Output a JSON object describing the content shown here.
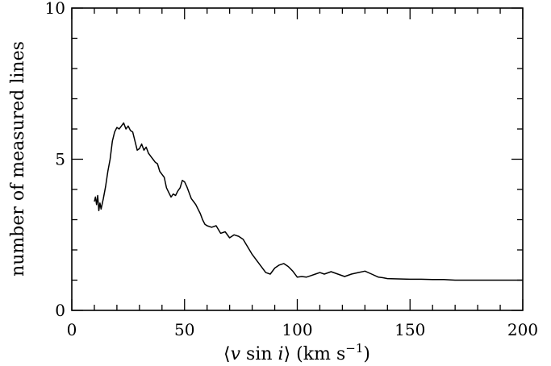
{
  "chart_data": {
    "type": "line",
    "title": "",
    "xlabel_parts": {
      "open": "⟨",
      "v": "v",
      "sin": " sin ",
      "i": "i",
      "close": "⟩",
      "units": " (km s",
      "exp": "−1",
      "end": ")"
    },
    "ylabel": "number of measured lines",
    "xlim": [
      0,
      200
    ],
    "ylim": [
      0,
      10
    ],
    "x_ticks": [
      0,
      50,
      100,
      150,
      200
    ],
    "y_ticks": [
      0,
      5,
      10
    ],
    "x_tick_labels": [
      "0",
      "50",
      "100",
      "150",
      "200"
    ],
    "y_tick_labels": [
      "0",
      "5",
      "10"
    ],
    "x_minor_step": 10,
    "y_minor_step": 1,
    "grid": false,
    "color": "#000000",
    "series": [
      {
        "x": [
          10,
          10.5,
          11,
          11.5,
          12,
          12.5,
          13,
          14,
          15,
          16,
          17,
          18,
          19,
          20,
          21,
          22,
          23,
          24,
          25,
          26,
          27,
          28,
          29,
          30,
          31,
          32,
          33,
          34,
          35,
          36,
          37,
          38,
          39,
          40,
          41,
          42,
          43,
          44,
          45,
          46,
          47,
          48,
          49,
          50,
          51,
          52,
          53,
          54,
          55,
          56,
          57,
          58,
          59,
          60,
          62,
          64,
          66,
          68,
          70,
          72,
          74,
          76,
          78,
          80,
          82,
          84,
          86,
          88,
          90,
          92,
          94,
          96,
          98,
          100,
          102,
          104,
          106,
          108,
          110,
          112,
          115,
          118,
          121,
          124,
          127,
          130,
          133,
          136,
          138,
          140,
          145,
          150,
          155,
          160,
          165,
          170,
          175,
          180,
          185,
          190,
          195,
          200
        ],
        "y": [
          3.6,
          3.75,
          3.5,
          3.8,
          3.3,
          3.55,
          3.35,
          3.7,
          4.1,
          4.6,
          5.0,
          5.6,
          5.9,
          6.05,
          6.0,
          6.1,
          6.2,
          6.0,
          6.1,
          5.95,
          5.9,
          5.6,
          5.3,
          5.35,
          5.5,
          5.3,
          5.4,
          5.2,
          5.1,
          5.0,
          4.9,
          4.85,
          4.6,
          4.5,
          4.4,
          4.05,
          3.9,
          3.75,
          3.85,
          3.8,
          3.95,
          4.05,
          4.3,
          4.25,
          4.1,
          3.9,
          3.7,
          3.6,
          3.5,
          3.35,
          3.2,
          3.0,
          2.85,
          2.8,
          2.75,
          2.8,
          2.55,
          2.6,
          2.4,
          2.5,
          2.45,
          2.35,
          2.1,
          1.85,
          1.65,
          1.45,
          1.25,
          1.2,
          1.4,
          1.5,
          1.55,
          1.45,
          1.3,
          1.1,
          1.12,
          1.1,
          1.15,
          1.2,
          1.25,
          1.2,
          1.28,
          1.2,
          1.12,
          1.2,
          1.25,
          1.3,
          1.2,
          1.1,
          1.08,
          1.05,
          1.04,
          1.03,
          1.03,
          1.02,
          1.02,
          1.0,
          1.0,
          1.0,
          1.0,
          1.0,
          1.0,
          1.0
        ]
      }
    ]
  }
}
